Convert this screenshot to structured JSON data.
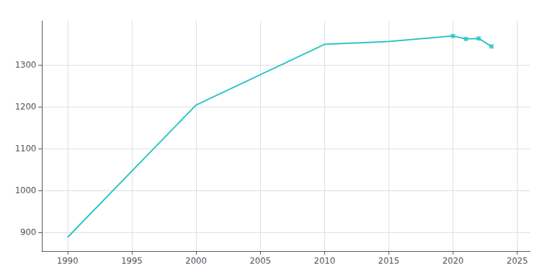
{
  "chart_data": {
    "type": "line",
    "series": [
      {
        "type": "line",
        "color": "#2ac4c4",
        "x": [
          1990,
          2000,
          2010,
          2015,
          2020,
          2021,
          2022,
          2023
        ],
        "values": [
          888,
          1204,
          1349,
          1356,
          1369,
          1362,
          1363,
          1344
        ]
      },
      {
        "type": "scatter",
        "marker": "square",
        "color": "#2ac4c4",
        "x": [
          2020,
          2021,
          2022,
          2023
        ],
        "values": [
          1369,
          1362,
          1363,
          1344
        ]
      }
    ],
    "xlim": [
      1988,
      2026
    ],
    "xticks": [
      1990,
      1995,
      2000,
      2005,
      2010,
      2015,
      2020,
      2025
    ],
    "ylim": [
      855,
      1405
    ],
    "yticks": [
      900,
      1000,
      1100,
      1200,
      1300
    ],
    "grid": true
  }
}
